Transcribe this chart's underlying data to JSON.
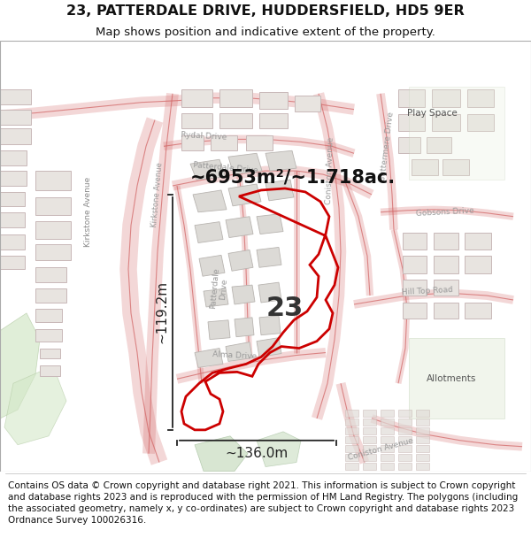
{
  "title": "23, PATTERDALE DRIVE, HUDDERSFIELD, HD5 9ER",
  "subtitle": "Map shows position and indicative extent of the property.",
  "title_fontsize": 11.5,
  "subtitle_fontsize": 9.5,
  "footer_text": "Contains OS data © Crown copyright and database right 2021. This information is subject to Crown copyright and database rights 2023 and is reproduced with the permission of HM Land Registry. The polygons (including the associated geometry, namely x, y co-ordinates) are subject to Crown copyright and database rights 2023 Ordnance Survey 100026316.",
  "footer_fontsize": 7.5,
  "label_area": "~6953m²/~1.718ac.",
  "label_number": "23",
  "label_width": "~136.0m",
  "label_height": "~119.2m",
  "map_bg": "#f5f3f0",
  "road_color": "#e8a0a0",
  "road_outline": "#d06060",
  "building_fc": "#e8e4e0",
  "building_ec": "#c8b8b8",
  "highlight_color": "#cc0000",
  "dim_color": "#222222",
  "text_color": "#333333",
  "green_color": "#c8dcc0"
}
